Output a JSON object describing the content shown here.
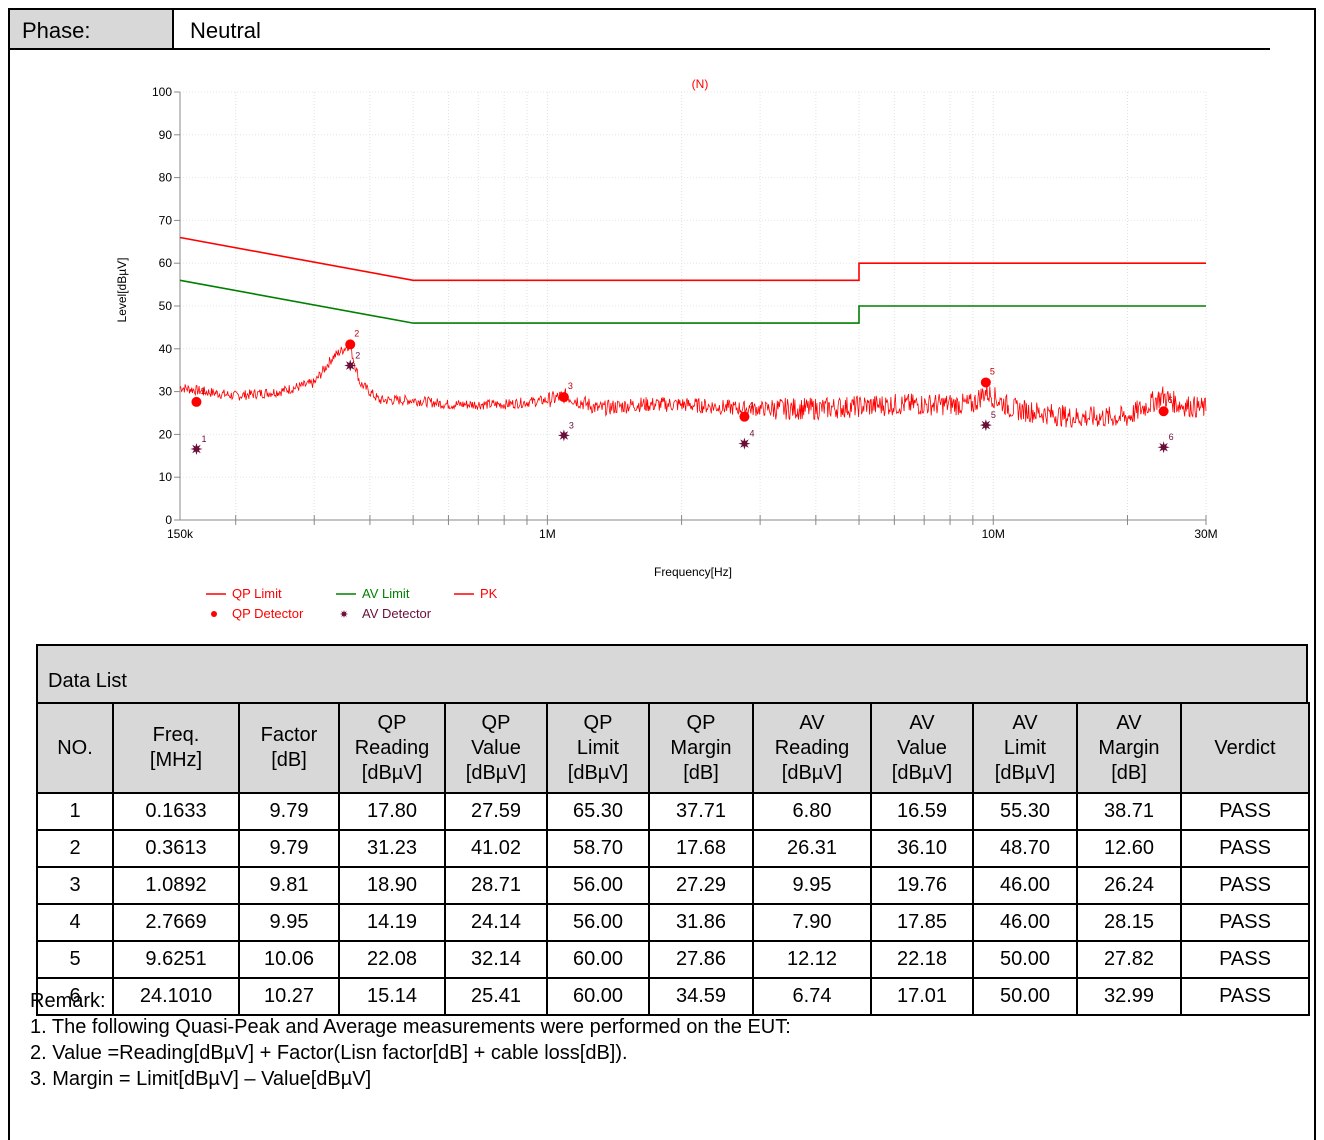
{
  "phase": {
    "label": "Phase:",
    "value": "Neutral"
  },
  "chart_data": {
    "type": "line",
    "title": "(N)",
    "xlabel": "Frequency[Hz]",
    "ylabel": "Level[dBµV]",
    "x_scale": "log",
    "xlim": [
      150000,
      30000000
    ],
    "ylim": [
      0,
      100
    ],
    "yticks": [
      0,
      10,
      20,
      30,
      40,
      50,
      60,
      70,
      80,
      90,
      100
    ],
    "xticks": [
      {
        "value": 150000,
        "label": "150k"
      },
      {
        "value": 1000000,
        "label": "1M"
      },
      {
        "value": 10000000,
        "label": "10M"
      },
      {
        "value": 30000000,
        "label": "30M"
      }
    ],
    "grid": true,
    "legend_position": "bottom-left",
    "series": [
      {
        "name": "QP Limit",
        "color": "#ff0000",
        "style": "line",
        "x": [
          150000,
          500000,
          500000,
          5000000,
          5000000,
          30000000
        ],
        "y": [
          66,
          56,
          56,
          56,
          60,
          60
        ]
      },
      {
        "name": "AV Limit",
        "color": "#008000",
        "style": "line",
        "x": [
          150000,
          500000,
          500000,
          5000000,
          5000000,
          30000000
        ],
        "y": [
          56,
          46,
          46,
          46,
          50,
          50
        ]
      },
      {
        "name": "PK",
        "color": "#ff0000",
        "style": "noise-trace",
        "x": [
          150000,
          170000,
          200000,
          250000,
          300000,
          330000,
          360000,
          380000,
          420000,
          500000,
          600000,
          800000,
          1000000,
          1100000,
          1300000,
          1600000,
          2000000,
          2800000,
          4000000,
          6000000,
          9000000,
          9600000,
          11000000,
          15000000,
          20000000,
          24000000,
          26000000,
          30000000
        ],
        "y": [
          31,
          30,
          29,
          30,
          32,
          38,
          41,
          32,
          28,
          28,
          27,
          27,
          28,
          29,
          26,
          27,
          27,
          26,
          26,
          27,
          27,
          30,
          26,
          24,
          24,
          29,
          27,
          26
        ]
      },
      {
        "name": "QP Detector",
        "color": "#ff0000",
        "style": "dot",
        "x": [
          163300,
          361300,
          1089200,
          2766900,
          9625100,
          24101000
        ],
        "y": [
          27.59,
          41.02,
          28.71,
          24.14,
          32.14,
          25.41
        ],
        "labels": [
          "1",
          "2",
          "3",
          "4",
          "5",
          "6"
        ]
      },
      {
        "name": "AV Detector",
        "color": "#6b0f3a",
        "style": "star",
        "x": [
          163300,
          361300,
          1089200,
          2766900,
          9625100,
          24101000
        ],
        "y": [
          16.59,
          36.1,
          19.76,
          17.85,
          22.18,
          17.01
        ],
        "labels": [
          "1",
          "2",
          "3",
          "4",
          "5",
          "6"
        ]
      }
    ]
  },
  "data_list": {
    "title": "Data List",
    "headers": [
      [
        "NO."
      ],
      [
        "Freq.",
        "[MHz]"
      ],
      [
        "Factor",
        "[dB]"
      ],
      [
        "QP",
        "Reading",
        "[dBµV]"
      ],
      [
        "QP",
        "Value",
        "[dBµV]"
      ],
      [
        "QP",
        "Limit",
        "[dBµV]"
      ],
      [
        "QP",
        "Margin",
        "[dB]"
      ],
      [
        "AV",
        "Reading",
        "[dBµV]"
      ],
      [
        "AV",
        "Value",
        "[dBµV]"
      ],
      [
        "AV",
        "Limit",
        "[dBµV]"
      ],
      [
        "AV",
        "Margin",
        "[dB]"
      ],
      [
        "Verdict"
      ]
    ],
    "rows": [
      [
        "1",
        "0.1633",
        "9.79",
        "17.80",
        "27.59",
        "65.30",
        "37.71",
        "6.80",
        "16.59",
        "55.30",
        "38.71",
        "PASS"
      ],
      [
        "2",
        "0.3613",
        "9.79",
        "31.23",
        "41.02",
        "58.70",
        "17.68",
        "26.31",
        "36.10",
        "48.70",
        "12.60",
        "PASS"
      ],
      [
        "3",
        "1.0892",
        "9.81",
        "18.90",
        "28.71",
        "56.00",
        "27.29",
        "9.95",
        "19.76",
        "46.00",
        "26.24",
        "PASS"
      ],
      [
        "4",
        "2.7669",
        "9.95",
        "14.19",
        "24.14",
        "56.00",
        "31.86",
        "7.90",
        "17.85",
        "46.00",
        "28.15",
        "PASS"
      ],
      [
        "5",
        "9.6251",
        "10.06",
        "22.08",
        "32.14",
        "60.00",
        "27.86",
        "12.12",
        "22.18",
        "50.00",
        "27.82",
        "PASS"
      ],
      [
        "6",
        "24.1010",
        "10.27",
        "15.14",
        "25.41",
        "60.00",
        "34.59",
        "6.74",
        "17.01",
        "50.00",
        "32.99",
        "PASS"
      ]
    ]
  },
  "remark": {
    "title": "Remark:",
    "lines": [
      "1. The following Quasi-Peak and Average measurements were performed on the EUT:",
      "2. Value =Reading[dBµV] + Factor(Lisn factor[dB] + cable loss[dB]).",
      "3. Margin = Limit[dBµV] – Value[dBµV]"
    ]
  }
}
